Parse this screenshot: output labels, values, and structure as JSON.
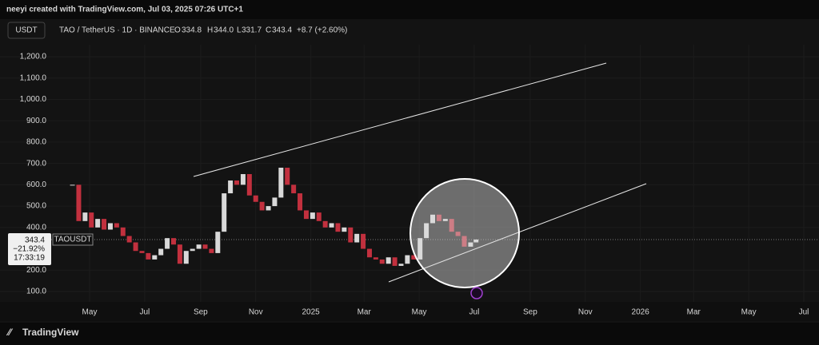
{
  "header": {
    "attribution": "neeyi created with TradingView.com, Jul 03, 2025 07:26 UTC+1",
    "currency": "USDT",
    "symbol": "TAO / TetherUS · 1D · BINANCE",
    "o_label": "O",
    "o": "334.8",
    "h_label": "H",
    "h": "344.0",
    "l_label": "L",
    "l": "331.7",
    "c_label": "C",
    "c": "343.4",
    "change": "+8.7 (+2.60%)"
  },
  "price_tag": {
    "price": "343.4",
    "pct": "−21.92%",
    "countdown": "17:33:19",
    "ticker": "TAOUSDT"
  },
  "footer": {
    "brand": "TradingView"
  },
  "chart_data": {
    "type": "candlestick",
    "x": [
      0,
      7,
      14,
      21,
      28,
      35,
      42,
      49,
      56,
      63,
      70,
      77,
      84,
      91,
      98,
      105,
      112,
      119,
      126,
      133,
      140,
      147,
      154,
      161,
      168,
      175,
      182,
      189,
      196,
      203,
      210,
      217,
      224,
      231,
      238,
      245,
      252,
      259,
      266,
      273,
      280,
      287,
      294,
      301,
      308,
      315,
      322,
      329,
      336,
      343,
      350,
      357,
      364,
      371,
      378,
      385,
      392,
      399,
      406,
      413,
      420,
      427,
      434,
      441,
      447
    ],
    "values": [
      600,
      430,
      470,
      400,
      440,
      390,
      420,
      400,
      360,
      330,
      290,
      280,
      250,
      270,
      300,
      350,
      320,
      230,
      290,
      300,
      320,
      300,
      280,
      380,
      560,
      620,
      600,
      650,
      550,
      520,
      480,
      500,
      540,
      680,
      600,
      560,
      480,
      440,
      470,
      430,
      400,
      420,
      380,
      400,
      330,
      370,
      300,
      260,
      250,
      230,
      260,
      220,
      230,
      270,
      250,
      350,
      420,
      460,
      430,
      440,
      380,
      360,
      310,
      330,
      343.4
    ],
    "up_color": "#d9d9d9",
    "down_color": "#c2303e",
    "xlim": [
      -20,
      800
    ],
    "xticks": [
      {
        "value": 19,
        "label": "May"
      },
      {
        "value": 80,
        "label": "Jul"
      },
      {
        "value": 142,
        "label": "Sep"
      },
      {
        "value": 203,
        "label": "Nov"
      },
      {
        "value": 264,
        "label": "2025"
      },
      {
        "value": 323,
        "label": "Mar"
      },
      {
        "value": 384,
        "label": "May"
      },
      {
        "value": 445,
        "label": "Jul"
      },
      {
        "value": 507,
        "label": "Sep"
      },
      {
        "value": 568,
        "label": "Nov"
      },
      {
        "value": 629,
        "label": "2026"
      },
      {
        "value": 688,
        "label": "Mar"
      },
      {
        "value": 749,
        "label": "May"
      },
      {
        "value": 810,
        "label": "Jul"
      }
    ],
    "ylim": [
      100,
      1200
    ],
    "yticks": [
      {
        "value": 100,
        "label": "100.0"
      },
      {
        "value": 200,
        "label": "200.0"
      },
      {
        "value": 400,
        "label": "400.0"
      },
      {
        "value": 500,
        "label": "500.0"
      },
      {
        "value": 600,
        "label": "600.0"
      },
      {
        "value": 700,
        "label": "700.0"
      },
      {
        "value": 800,
        "label": "800.0"
      },
      {
        "value": 900,
        "label": "900.0"
      },
      {
        "value": 1000,
        "label": "1,000.0"
      },
      {
        "value": 1100,
        "label": "1,100.0"
      },
      {
        "value": 1200,
        "label": "1,200.0"
      }
    ],
    "last_price": 343.4
  }
}
